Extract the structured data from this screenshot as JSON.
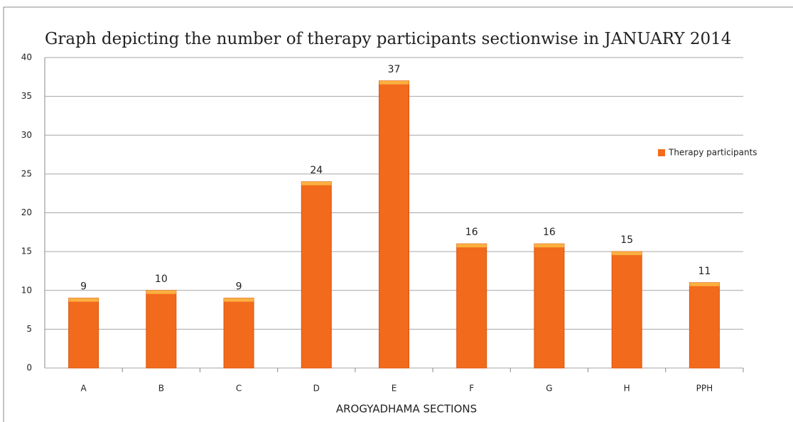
{
  "chart_data": {
    "type": "bar",
    "title": "Graph depicting the number of therapy participants sectionwise in JANUARY 2014",
    "xlabel": "AROGYADHAMA SECTIONS",
    "categories": [
      "A",
      "B",
      "C",
      "D",
      "E",
      "F",
      "G",
      "H",
      "PPH"
    ],
    "series": [
      {
        "name": "Therapy participants",
        "color": "#f26a1b",
        "values": [
          9,
          10,
          9,
          24,
          37,
          16,
          16,
          15,
          11
        ]
      }
    ],
    "ylim": [
      0,
      40
    ],
    "yticks": [
      0,
      5,
      10,
      15,
      20,
      25,
      30,
      35,
      40
    ],
    "grid": true,
    "legend": "right"
  }
}
